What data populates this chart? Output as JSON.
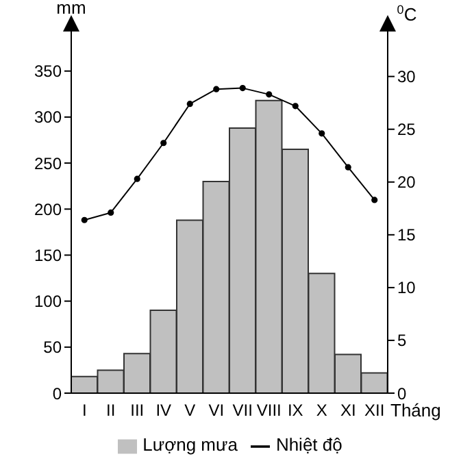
{
  "chart_data": {
    "type": "bar",
    "categories": [
      "I",
      "II",
      "III",
      "IV",
      "V",
      "VI",
      "VII",
      "VIII",
      "IX",
      "X",
      "XI",
      "XII"
    ],
    "xlabel": "Tháng",
    "ylabel": "mm",
    "y2label": "$^{0}$C",
    "series": [
      {
        "name": "Lượng mưa",
        "color": "#c0c0c0",
        "values": [
          18,
          25,
          43,
          90,
          188,
          230,
          288,
          318,
          265,
          130,
          42,
          22
        ]
      },
      {
        "name": "Nhiệt độ",
        "type": "line",
        "axis": "y2",
        "color": "#000000",
        "values": [
          16.4,
          17.1,
          20.3,
          23.7,
          27.4,
          28.8,
          28.9,
          28.3,
          27.2,
          24.6,
          21.4,
          18.3
        ]
      }
    ],
    "ylim": [
      0,
      390
    ],
    "yticks": [
      0,
      50,
      100,
      150,
      200,
      250,
      300,
      350
    ],
    "y2lim": [
      0,
      34
    ],
    "y2ticks": [
      0,
      5,
      10,
      15,
      20,
      25,
      30
    ],
    "grid": false,
    "legend": "bottom",
    "marker": "circle"
  }
}
